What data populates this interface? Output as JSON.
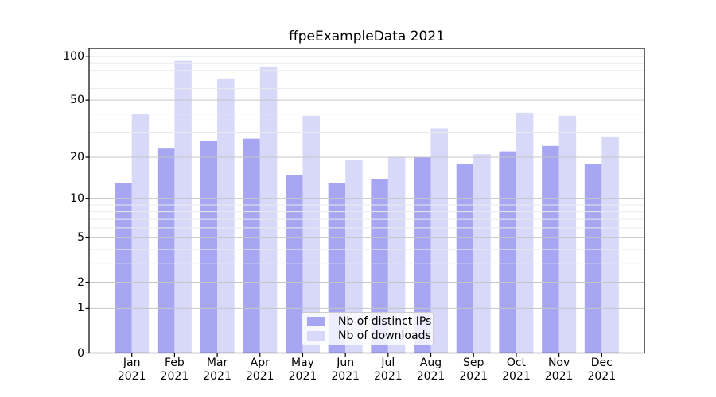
{
  "figure": {
    "title": "ffpeExampleData 2021",
    "background": "#ffffff"
  },
  "chart_data": {
    "type": "bar",
    "title": "ffpeExampleData 2021",
    "categories": [
      "Jan",
      "Feb",
      "Mar",
      "Apr",
      "May",
      "Jun",
      "Jul",
      "Aug",
      "Sep",
      "Oct",
      "Nov",
      "Dec"
    ],
    "x_year": "2021",
    "series": [
      {
        "name": "Nb of distinct IPs",
        "color": "#a6a6f2",
        "values": [
          13,
          23,
          26,
          27,
          15,
          13,
          14,
          20,
          18,
          22,
          24,
          18
        ]
      },
      {
        "name": "Nb of downloads",
        "color": "#d8d8f8",
        "values": [
          40,
          93,
          70,
          85,
          39,
          19,
          20,
          32,
          21,
          41,
          39,
          28
        ]
      }
    ],
    "yscale": "log10(1+x)",
    "ylim": [
      0,
      113
    ],
    "y_major_ticks": [
      0,
      1,
      2,
      5,
      10,
      20,
      50,
      100
    ],
    "y_minor_gridlines": [
      3,
      4,
      6,
      7,
      8,
      9,
      30,
      40,
      60,
      70,
      80,
      90
    ],
    "grid": true,
    "legend_position": "lower center"
  },
  "colors": {
    "major_grid": "#c6c6c6",
    "minor_grid": "#ebebeb",
    "axis": "#000000",
    "text": "#000000"
  }
}
